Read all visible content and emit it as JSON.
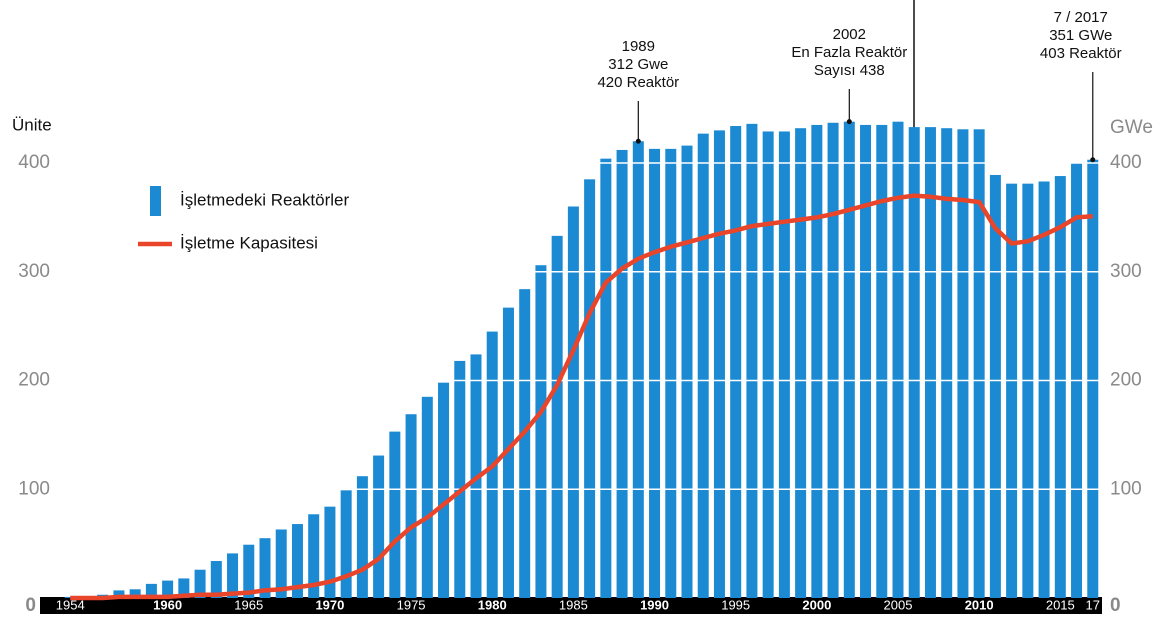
{
  "chart_data": {
    "type": "bar-line",
    "x": [
      1954,
      1955,
      1956,
      1957,
      1958,
      1959,
      1960,
      1961,
      1962,
      1963,
      1964,
      1965,
      1966,
      1967,
      1968,
      1969,
      1970,
      1971,
      1972,
      1973,
      1974,
      1975,
      1976,
      1977,
      1978,
      1979,
      1980,
      1981,
      1982,
      1983,
      1984,
      1985,
      1986,
      1987,
      1988,
      1989,
      1990,
      1991,
      1992,
      1993,
      1994,
      1995,
      1996,
      1997,
      1998,
      1999,
      2000,
      2001,
      2002,
      2003,
      2004,
      2005,
      2006,
      2007,
      2008,
      2009,
      2010,
      2011,
      2012,
      2013,
      2014,
      2015,
      2016,
      2017
    ],
    "series": [
      {
        "name": "İşletmedeki Reaktörler",
        "type": "bar",
        "color": "#1b8ad3",
        "values": [
          1,
          1,
          3,
          7,
          8,
          13,
          16,
          18,
          26,
          34,
          41,
          49,
          55,
          63,
          68,
          77,
          84,
          99,
          112,
          131,
          153,
          169,
          185,
          198,
          218,
          224,
          245,
          267,
          284,
          306,
          333,
          360,
          385,
          404,
          412,
          420,
          413,
          413,
          416,
          427,
          430,
          434,
          436,
          429,
          429,
          432,
          435,
          437,
          438,
          435,
          435,
          438,
          433,
          433,
          432,
          431,
          431,
          389,
          381,
          381,
          383,
          388,
          400,
          403
        ]
      },
      {
        "name": "İşletme Kapasitesi",
        "type": "line",
        "color": "#e8452a",
        "axis": "y2",
        "values": [
          0,
          0,
          0,
          1,
          1,
          1,
          1,
          2,
          3,
          3,
          4,
          5,
          7,
          8,
          10,
          12,
          15,
          20,
          26,
          36,
          52,
          65,
          74,
          86,
          98,
          110,
          121,
          137,
          153,
          171,
          196,
          228,
          262,
          290,
          303,
          312,
          318,
          323,
          327,
          331,
          335,
          338,
          342,
          344,
          346,
          348,
          350,
          353,
          357,
          361,
          365,
          368,
          370,
          369,
          367,
          366,
          364,
          340,
          326,
          328,
          334,
          341,
          350,
          351
        ]
      }
    ],
    "xlim": [
      1953,
      2018
    ],
    "xticks": [
      {
        "value": 1954,
        "label": "1954"
      },
      1960,
      1965,
      1970,
      1975,
      1980,
      1985,
      1990,
      1995,
      2000,
      2005,
      2010,
      2015,
      {
        "value": 2017,
        "label": "17"
      }
    ],
    "ylim": [
      0,
      400
    ],
    "yticks": [
      0,
      100,
      200,
      300,
      400
    ],
    "y2lim": [
      0,
      400
    ],
    "y2ticks": [
      0,
      100,
      200,
      300,
      400
    ],
    "y_label": "Ünite",
    "y2_label": "GWe",
    "grid": true,
    "annotations": [
      {
        "x": 1989,
        "lines": [
          "1989",
          "312 Gwe",
          "420 Reaktör"
        ]
      },
      {
        "x": 2002,
        "lines": [
          "2002",
          "En Fazla Reaktör",
          "Sayısı  438"
        ]
      },
      {
        "x": 2017,
        "lines": [
          "7 / 2017",
          "351 GWe",
          "403 Reaktör"
        ]
      }
    ]
  }
}
